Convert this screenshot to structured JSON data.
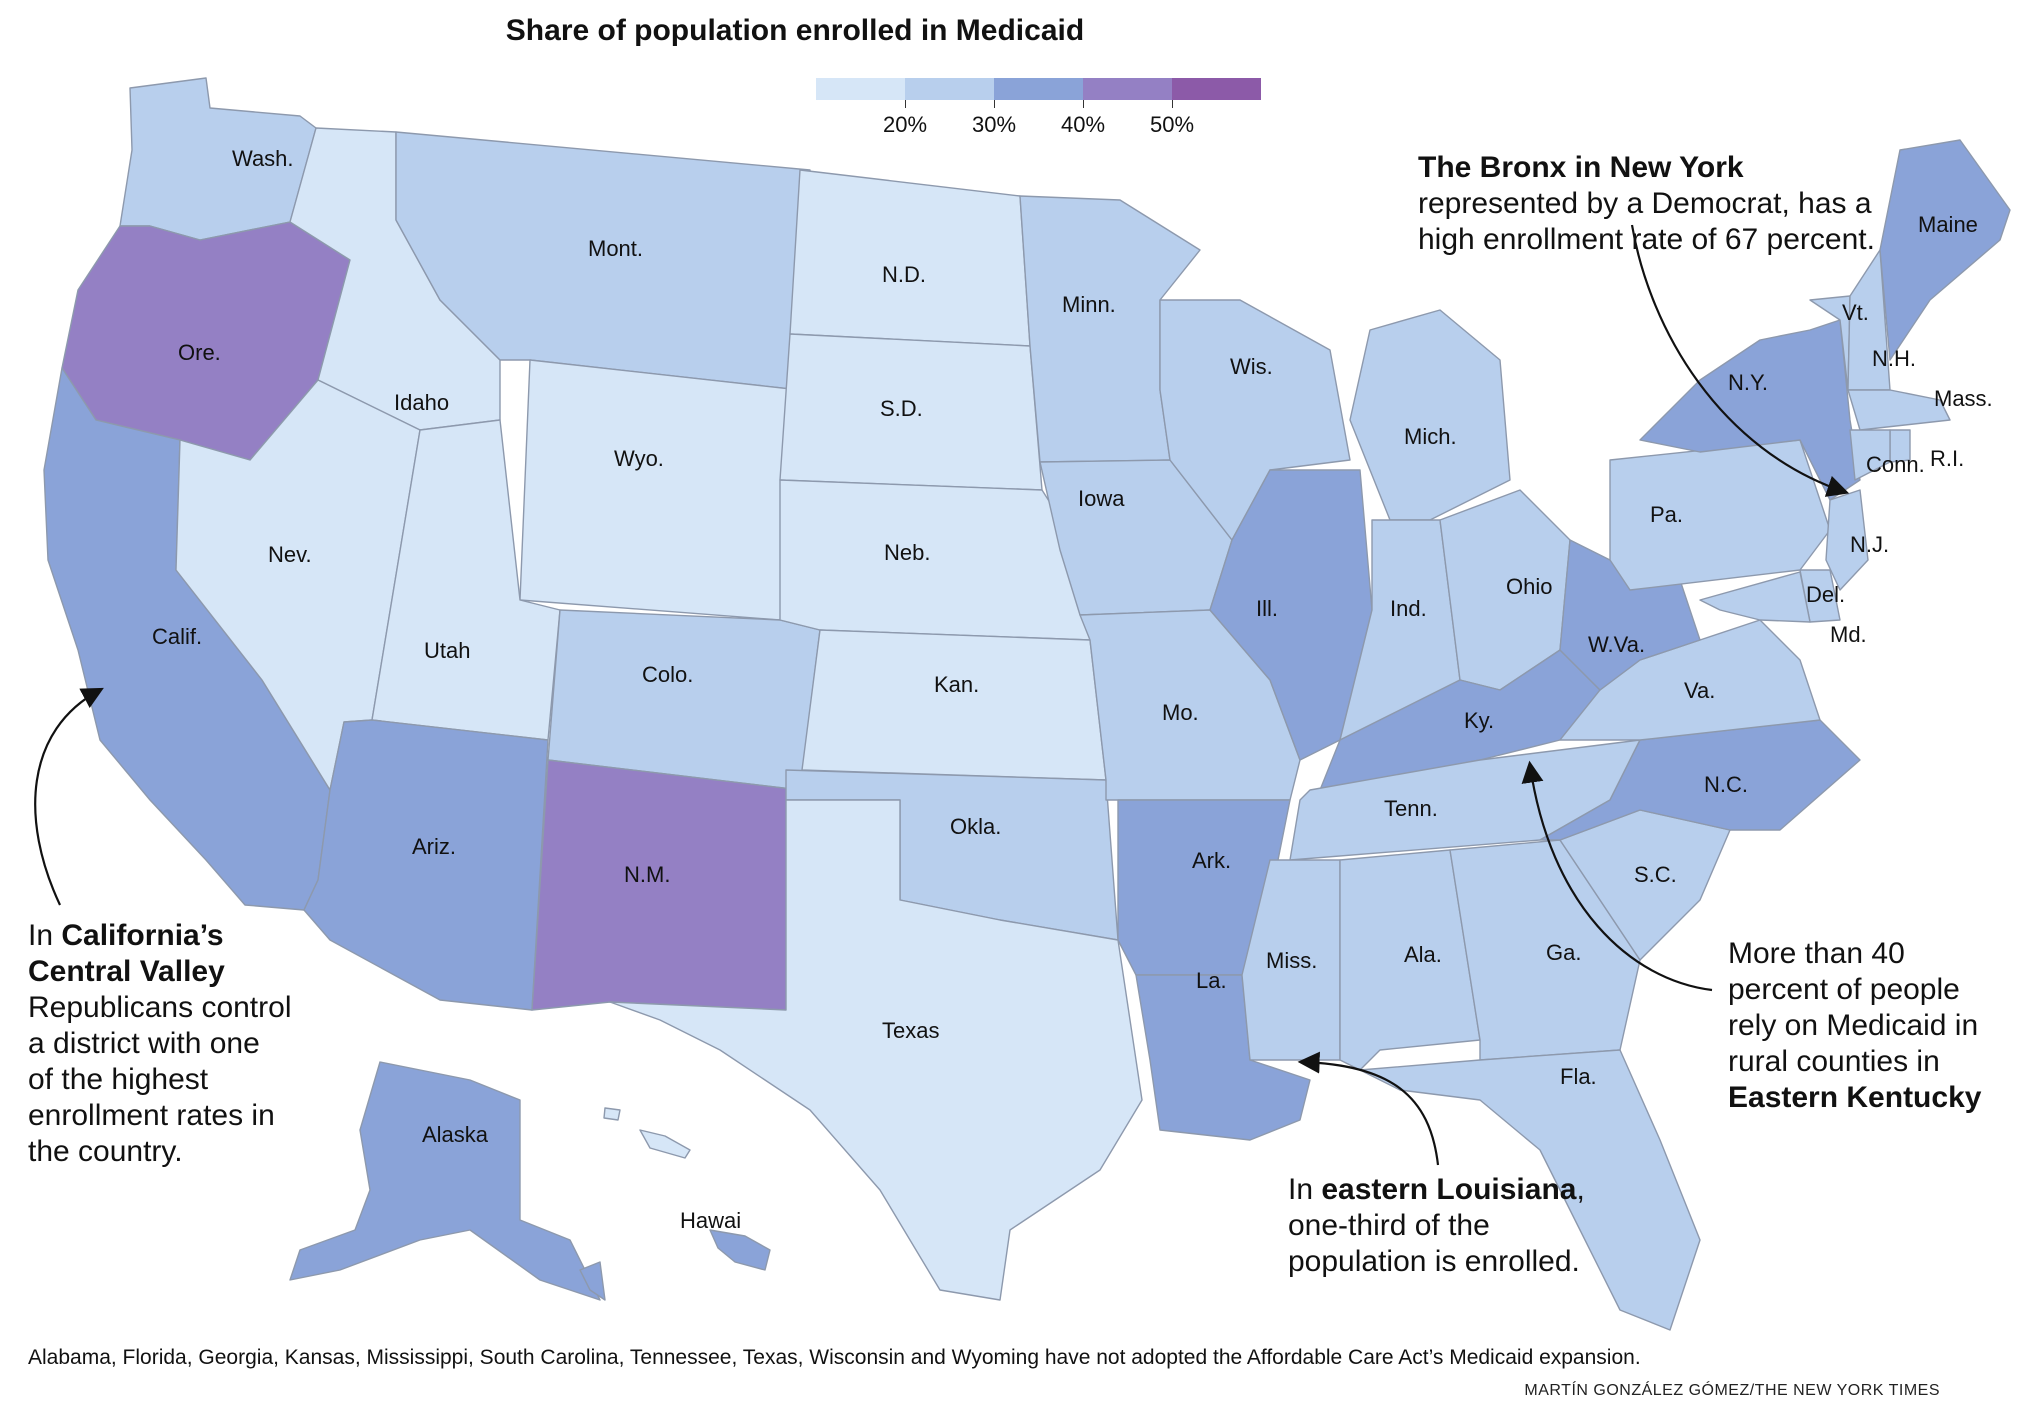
{
  "title": "Share of population enrolled in Medicaid",
  "legend": {
    "colors": [
      "#d6e6f7",
      "#b8cfed",
      "#8aa3d8",
      "#9480c4",
      "#8c5aa8"
    ],
    "ticks": [
      "20%",
      "30%",
      "40%",
      "50%"
    ]
  },
  "states": [
    {
      "id": "wa",
      "label": "Wash."
    },
    {
      "id": "or",
      "label": "Ore."
    },
    {
      "id": "ca",
      "label": "Calif."
    },
    {
      "id": "id",
      "label": "Idaho"
    },
    {
      "id": "nv",
      "label": "Nev."
    },
    {
      "id": "mt",
      "label": "Mont."
    },
    {
      "id": "wy",
      "label": "Wyo."
    },
    {
      "id": "ut",
      "label": "Utah"
    },
    {
      "id": "co",
      "label": "Colo."
    },
    {
      "id": "az",
      "label": "Ariz."
    },
    {
      "id": "nm",
      "label": "N.M."
    },
    {
      "id": "nd",
      "label": "N.D."
    },
    {
      "id": "sd",
      "label": "S.D."
    },
    {
      "id": "ne",
      "label": "Neb."
    },
    {
      "id": "ks",
      "label": "Kan."
    },
    {
      "id": "ok",
      "label": "Okla."
    },
    {
      "id": "tx",
      "label": "Texas"
    },
    {
      "id": "mn",
      "label": "Minn."
    },
    {
      "id": "ia",
      "label": "Iowa"
    },
    {
      "id": "mo",
      "label": "Mo."
    },
    {
      "id": "ar",
      "label": "Ark."
    },
    {
      "id": "la",
      "label": "La."
    },
    {
      "id": "wi",
      "label": "Wis."
    },
    {
      "id": "il",
      "label": "Ill."
    },
    {
      "id": "mi",
      "label": "Mich."
    },
    {
      "id": "in",
      "label": "Ind."
    },
    {
      "id": "oh",
      "label": "Ohio"
    },
    {
      "id": "ky",
      "label": "Ky."
    },
    {
      "id": "tn",
      "label": "Tenn."
    },
    {
      "id": "ms",
      "label": "Miss."
    },
    {
      "id": "al",
      "label": "Ala."
    },
    {
      "id": "ga",
      "label": "Ga."
    },
    {
      "id": "fl",
      "label": "Fla."
    },
    {
      "id": "sc",
      "label": "S.C."
    },
    {
      "id": "nc",
      "label": "N.C."
    },
    {
      "id": "va",
      "label": "Va."
    },
    {
      "id": "wv",
      "label": "W.Va."
    },
    {
      "id": "pa",
      "label": "Pa."
    },
    {
      "id": "ny",
      "label": "N.Y."
    },
    {
      "id": "vt",
      "label": "Vt."
    },
    {
      "id": "nh",
      "label": "N.H."
    },
    {
      "id": "me",
      "label": "Maine"
    },
    {
      "id": "ma",
      "label": "Mass."
    },
    {
      "id": "ri",
      "label": "R.I."
    },
    {
      "id": "ct",
      "label": "Conn."
    },
    {
      "id": "nj",
      "label": "N.J."
    },
    {
      "id": "de",
      "label": "Del."
    },
    {
      "id": "md",
      "label": "Md."
    },
    {
      "id": "ak",
      "label": "Alaska"
    },
    {
      "id": "hi",
      "label": "Hawai"
    }
  ],
  "annotations": {
    "bronx": {
      "bold": "The Bronx in New York",
      "lines": [
        "represented by a Democrat, has a",
        "high enrollment rate of 67 percent."
      ]
    },
    "california": {
      "pre": "In ",
      "bold1": "California’s",
      "bold2": "Central Valley",
      "lines": [
        "Republicans control",
        "a district with one",
        "of the highest",
        "enrollment rates in",
        "the country."
      ]
    },
    "louisiana": {
      "pre": "In ",
      "bold": "eastern Louisiana",
      "post": ",",
      "lines": [
        "one-third of the",
        "population is enrolled."
      ]
    },
    "kentucky": {
      "lines": [
        "More than 40",
        "percent of people",
        "rely on Medicaid in",
        "rural counties in"
      ],
      "bold": "Eastern Kentucky"
    }
  },
  "footnote": "Alabama, Florida, Georgia, Kansas, Mississippi, South Carolina, Tennessee, Texas, Wisconsin and Wyoming have not adopted the Affordable Care Act’s Medicaid expansion.",
  "credit": "MARTÍN GONZÁLEZ GÓMEZ/THE NEW YORK TIMES"
}
